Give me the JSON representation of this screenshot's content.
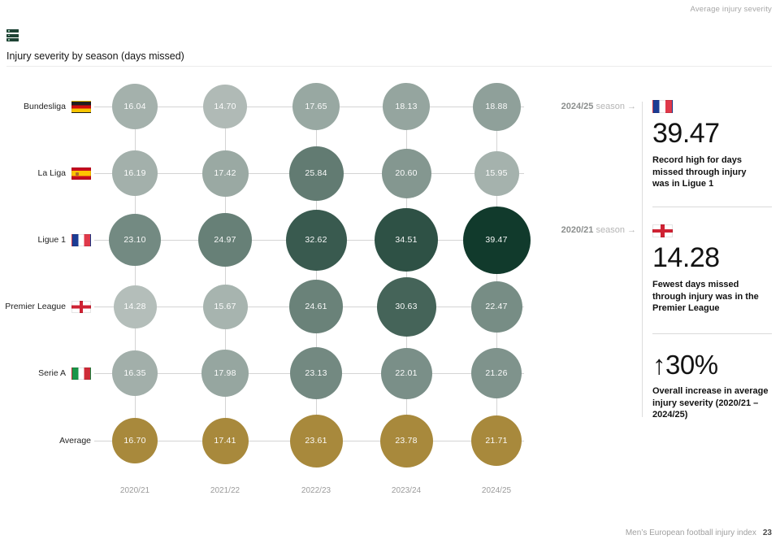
{
  "header": {
    "top_right_label": "Average injury severity",
    "title": "Injury severity by season (days missed)"
  },
  "chart_data": {
    "type": "bubble-matrix",
    "title": "Injury severity by season (days missed)",
    "unit": "days missed",
    "categories": [
      "2020/21",
      "2021/22",
      "2022/23",
      "2023/24",
      "2024/25"
    ],
    "series": [
      {
        "name": "Bundesliga",
        "flag": "germany",
        "values": [
          16.04,
          14.7,
          17.65,
          18.13,
          18.88
        ]
      },
      {
        "name": "La Liga",
        "flag": "spain",
        "values": [
          16.19,
          17.42,
          25.84,
          20.6,
          15.95
        ]
      },
      {
        "name": "Ligue 1",
        "flag": "france",
        "values": [
          23.1,
          24.97,
          32.62,
          34.51,
          39.47
        ]
      },
      {
        "name": "Premier League",
        "flag": "england",
        "values": [
          14.28,
          15.67,
          24.61,
          30.63,
          22.47
        ]
      },
      {
        "name": "Serie A",
        "flag": "italy",
        "values": [
          16.35,
          17.98,
          23.13,
          22.01,
          21.26
        ]
      },
      {
        "name": "Average",
        "flag": null,
        "values": [
          16.7,
          17.41,
          23.61,
          23.78,
          21.71
        ],
        "is_average": true
      }
    ],
    "value_range": [
      14.28,
      39.47
    ],
    "colors": {
      "bubble_light": "#b4beba",
      "bubble_dark": "#113a2c",
      "average_gold": "#a8893c",
      "grid": "#d4d4d4"
    },
    "legend_position": "none",
    "grid": true
  },
  "sidebar": {
    "annotations": [
      {
        "season": "2024/25",
        "suffix": "season →",
        "flag": "france",
        "value": "39.47",
        "description": "Record high for days missed through injury was in Ligue 1"
      },
      {
        "season": "2020/21",
        "suffix": "season →",
        "flag": "england",
        "value": "14.28",
        "description": "Fewest days missed through injury was in the Premier League"
      }
    ],
    "summary": {
      "value": "↑30%",
      "description": "Overall increase in average injury severity (2020/21 – 2024/25)"
    }
  },
  "footer": {
    "text": "Men’s European football injury index",
    "page_number": "23"
  }
}
